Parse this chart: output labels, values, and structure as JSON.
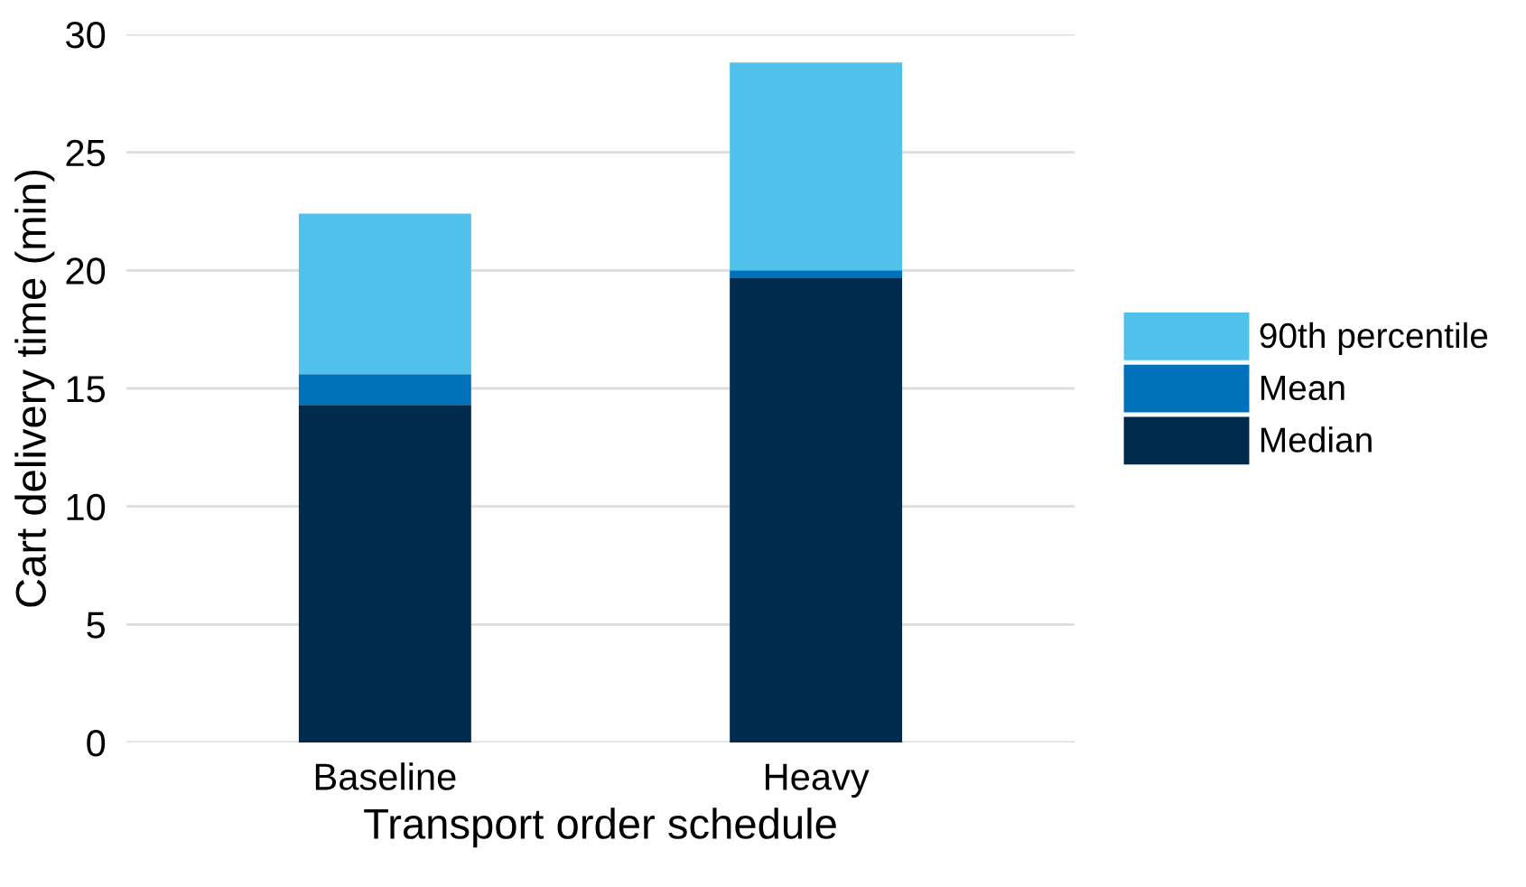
{
  "chart_data": {
    "type": "bar",
    "stacked": true,
    "xlabel": "Transport order schedule",
    "ylabel": "Cart delivery time (min)",
    "categories": [
      "Baseline",
      "Heavy"
    ],
    "series": [
      {
        "name": "Median",
        "color": "#002b4c",
        "values": [
          14.3,
          19.7
        ]
      },
      {
        "name": "Mean",
        "color": "#0072bb",
        "values": [
          1.3,
          0.3
        ]
      },
      {
        "name": "90th percentile",
        "color": "#4fc1ea",
        "values": [
          6.8,
          8.8
        ]
      }
    ],
    "ylim": [
      0,
      30
    ],
    "yticks": [
      0,
      5,
      10,
      15,
      20,
      25,
      30
    ],
    "grid": "y",
    "legend": "right"
  }
}
